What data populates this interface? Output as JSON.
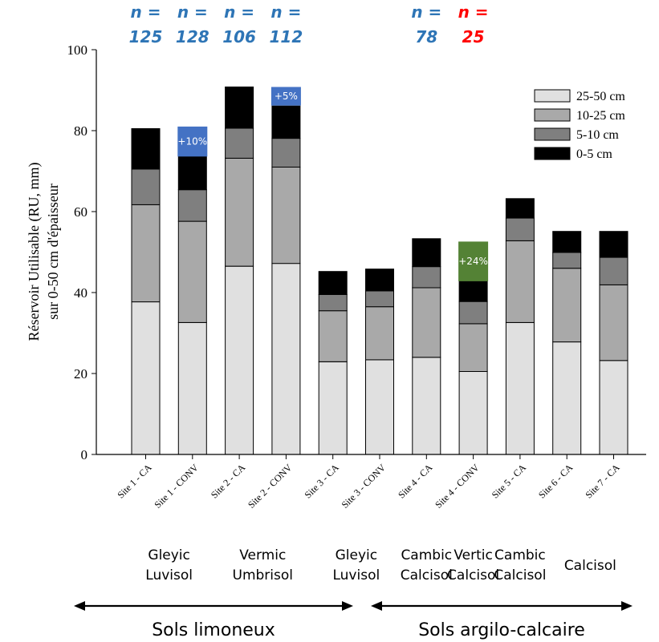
{
  "chart_data": {
    "type": "bar",
    "stacked": true,
    "ylabel_lines": [
      "Réservoir Utilisable (RU, mm)",
      "sur 0-50 cm d'épaisseur"
    ],
    "ylim": [
      0,
      100
    ],
    "yticks": [
      0,
      20,
      40,
      60,
      80,
      100
    ],
    "categories": [
      "Site 1 - CA",
      "Site 1 - CONV",
      "Site 2 - CA",
      "Site 2 - CONV",
      "Site 3 - CA",
      "Site 3 - CONV",
      "Site 4 - CA",
      "Site 4 - CONV",
      "Site 5 - CA",
      "Site 6 - CA",
      "Site 7 - CA"
    ],
    "series": [
      {
        "name": "25-50 cm",
        "color": "#e0e0e0",
        "values": [
          37.7,
          32.6,
          46.5,
          47.2,
          22.9,
          23.4,
          24.0,
          20.5,
          32.6,
          27.8,
          23.2
        ]
      },
      {
        "name": "10-25 cm",
        "color": "#a9a9a9",
        "values": [
          24.0,
          25.0,
          26.7,
          23.8,
          12.6,
          13.1,
          17.2,
          11.8,
          20.2,
          18.2,
          18.7
        ]
      },
      {
        "name": "5-10 cm",
        "color": "#7f7f7f",
        "values": [
          8.8,
          7.8,
          7.4,
          7.1,
          4.0,
          3.9,
          5.2,
          5.5,
          5.6,
          3.9,
          6.8
        ]
      },
      {
        "name": "0-5 cm",
        "color": "#000000",
        "values": [
          10.0,
          8.3,
          10.2,
          8.0,
          5.7,
          5.4,
          6.9,
          5.0,
          4.8,
          5.2,
          6.4
        ]
      }
    ],
    "legend": {
      "position": "top-right",
      "order": [
        "25-50 cm",
        "10-25 cm",
        "5-10 cm",
        "0-5 cm"
      ]
    },
    "annotations": [
      {
        "bar": 1,
        "text": "+10%",
        "color": "#4472c4",
        "y_top": 81,
        "y_bottom": 73.6
      },
      {
        "bar": 3,
        "text": "+5%",
        "color": "#4472c4",
        "y_top": 90.8,
        "y_bottom": 86.2
      },
      {
        "bar": 7,
        "text": "+24%",
        "color": "#548235",
        "y_top": 52.6,
        "y_bottom": 42.8
      }
    ],
    "n_labels": [
      {
        "bar": 0,
        "label": "n =",
        "value": "125",
        "color": "#2e75b6"
      },
      {
        "bar": 1,
        "label": "n =",
        "value": "128",
        "color": "#2e75b6"
      },
      {
        "bar": 2,
        "label": "n =",
        "value": "106",
        "color": "#2e75b6"
      },
      {
        "bar": 3,
        "label": "n =",
        "value": "112",
        "color": "#2e75b6"
      },
      {
        "bar": 6,
        "label": "n =",
        "value": "78",
        "color": "#2e75b6"
      },
      {
        "bar": 7,
        "label": "n =",
        "value": "25",
        "color": "#ff0000"
      }
    ],
    "soil_types": [
      {
        "lines": [
          "Gleyic",
          "Luvisol"
        ],
        "bars": [
          0,
          1
        ]
      },
      {
        "lines": [
          "Vermic",
          "Umbrisol"
        ],
        "bars": [
          2,
          3
        ]
      },
      {
        "lines": [
          "Gleyic",
          "Luvisol"
        ],
        "bars": [
          4,
          5
        ]
      },
      {
        "lines": [
          "Cambic",
          "Calcisol"
        ],
        "bars": [
          6,
          6
        ]
      },
      {
        "lines": [
          "Vertic",
          "Calcisol"
        ],
        "bars": [
          7,
          7
        ]
      },
      {
        "lines": [
          "Cambic",
          "Calcisol"
        ],
        "bars": [
          8,
          8
        ]
      },
      {
        "lines": [
          "Calcisol"
        ],
        "bars": [
          9,
          10
        ]
      }
    ],
    "groups": [
      {
        "label": "Sols limoneux",
        "bars": [
          0,
          5
        ]
      },
      {
        "label": "Sols argilo-calcaire",
        "bars": [
          6,
          10
        ]
      }
    ]
  }
}
